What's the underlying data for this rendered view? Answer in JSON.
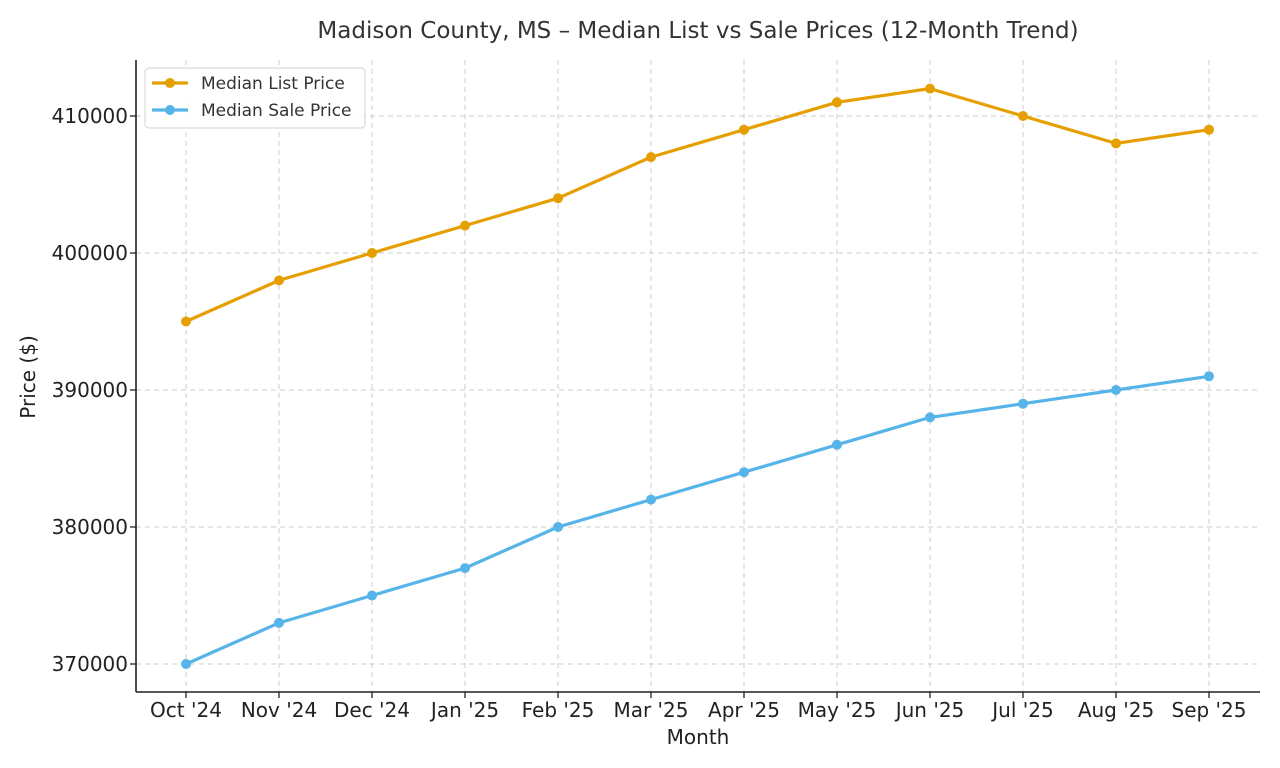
{
  "chart_data": {
    "type": "line",
    "title": "Madison County, MS – Median List vs Sale Prices (12-Month Trend)",
    "xlabel": "Month",
    "ylabel": "Price ($)",
    "categories": [
      "Oct '24",
      "Nov '24",
      "Dec '24",
      "Jan '25",
      "Feb '25",
      "Mar '25",
      "Apr '25",
      "May '25",
      "Jun '25",
      "Jul '25",
      "Aug '25",
      "Sep '25"
    ],
    "series": [
      {
        "name": "Median List Price",
        "color": "#E69F00",
        "values": [
          395000,
          398000,
          400000,
          402000,
          404000,
          407000,
          409000,
          411000,
          412000,
          410000,
          408000,
          409000
        ]
      },
      {
        "name": "Median Sale Price",
        "color": "#56B4E9",
        "values": [
          370000,
          373000,
          375000,
          377000,
          380000,
          382000,
          384000,
          386000,
          388000,
          389000,
          390000,
          391000
        ]
      }
    ],
    "yticks": [
      "370000",
      "380000",
      "390000",
      "400000",
      "410000"
    ],
    "ylim": [
      367900,
      414100
    ],
    "grid": true,
    "legend_position": "top-left"
  }
}
